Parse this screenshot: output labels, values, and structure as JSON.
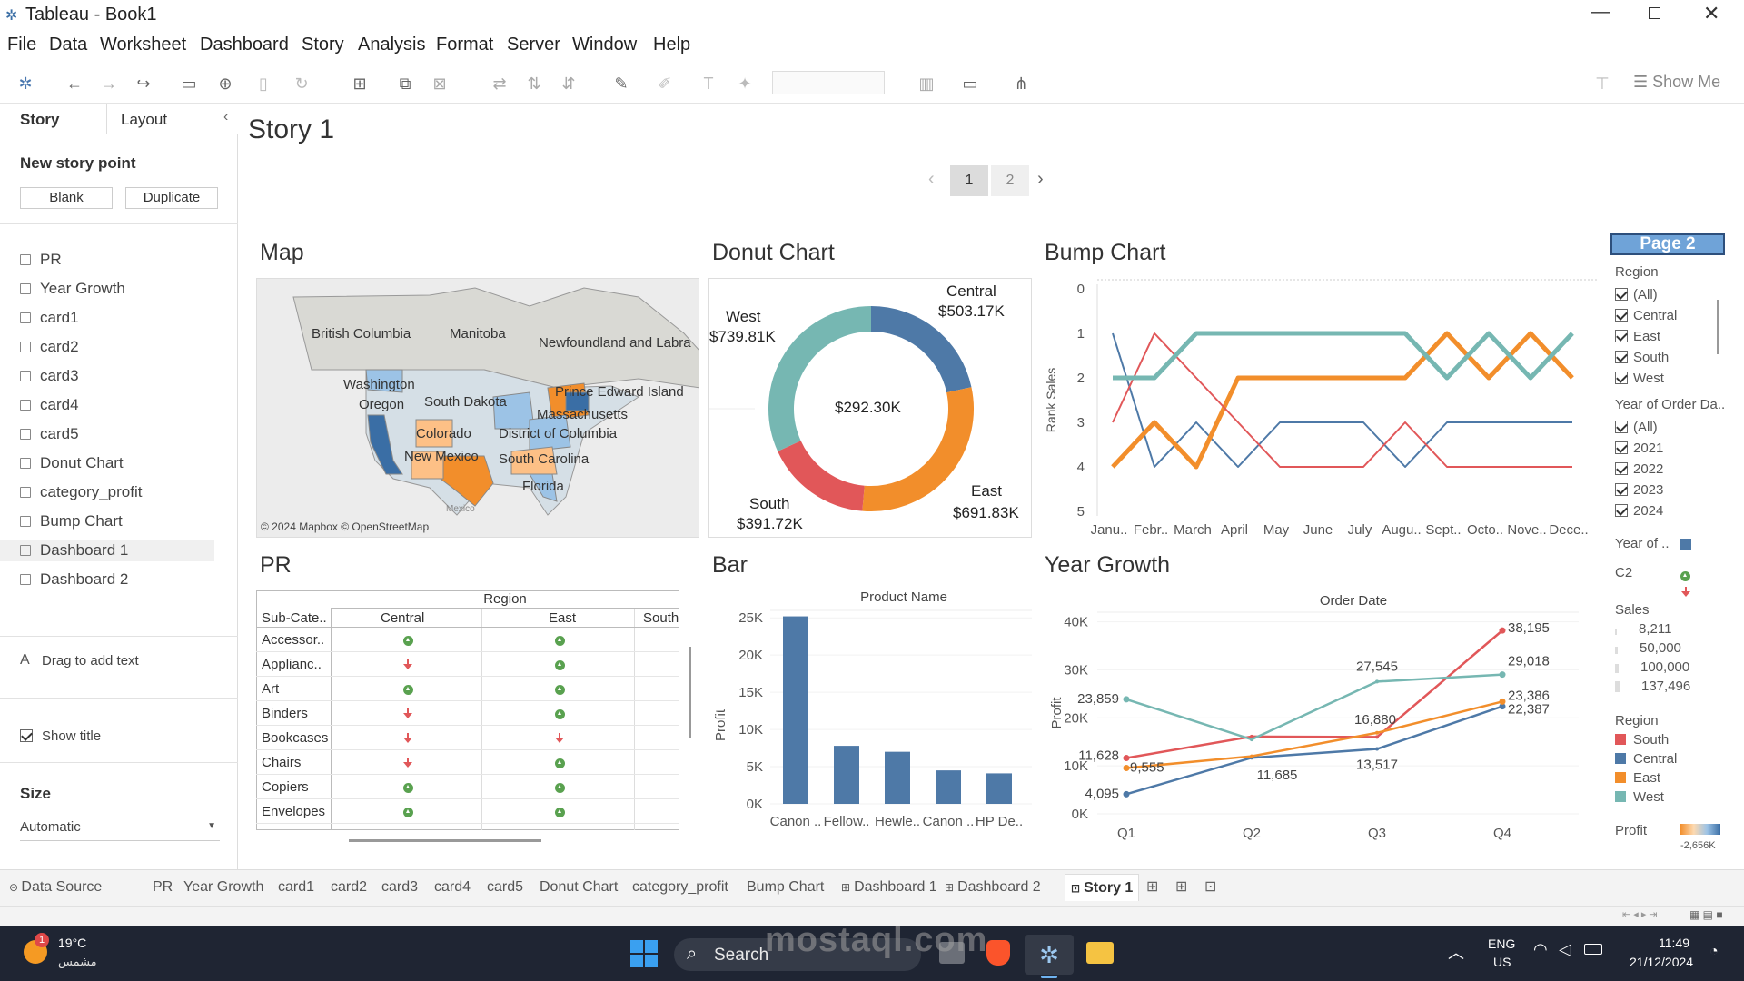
{
  "window": {
    "title": "Tableau - Book1"
  },
  "menu": [
    "File",
    "Data",
    "Worksheet",
    "Dashboard",
    "Story",
    "Analysis",
    "Format",
    "Server",
    "Window",
    "Help"
  ],
  "toolbar": {
    "show_me": "Show Me"
  },
  "side_panel": {
    "tabs": [
      "Story",
      "Layout"
    ],
    "new_story_point": "New story point",
    "blank": "Blank",
    "duplicate": "Duplicate",
    "sheets": [
      "PR",
      "Year Growth",
      "card1",
      "card2",
      "card3",
      "card4",
      "card5",
      "Donut Chart",
      "category_profit",
      "Bump Chart",
      "Dashboard 1",
      "Dashboard 2"
    ],
    "drag_text": "Drag to add text",
    "show_title": "Show title",
    "size_label": "Size",
    "size_value": "Automatic"
  },
  "story": {
    "title": "Story 1",
    "points": [
      "1",
      "2"
    ],
    "page_badge": "Page 2"
  },
  "map": {
    "title": "Map",
    "attribution": "© 2024 Mapbox © OpenStreetMap",
    "labels": [
      "British Columbia",
      "Manitoba",
      "Newfoundland and Labra",
      "Washington",
      "Oregon",
      "South Dakota",
      "Prince Edward Island",
      "Massachusetts",
      "Colorado",
      "District of Columbia",
      "New Mexico",
      "South Carolina",
      "Florida",
      "Mexico"
    ]
  },
  "donut": {
    "title": "Donut Chart",
    "center": "$292.30K",
    "central_name": "Central",
    "central_value": "$503.17K",
    "west_name": "West",
    "west_value": "$739.81K",
    "south_name": "South",
    "south_value": "$391.72K",
    "east_name": "East",
    "east_value": "$691.83K"
  },
  "bump": {
    "title": "Bump Chart",
    "ylabel": "Rank Sales",
    "yticks": [
      "0",
      "1",
      "2",
      "3",
      "4",
      "5"
    ],
    "months": [
      "Janu..",
      "Febr..",
      "March",
      "April",
      "May",
      "June",
      "July",
      "Augu..",
      "Sept..",
      "Octo..",
      "Nove..",
      "Dece.."
    ]
  },
  "pr": {
    "title": "PR",
    "region_header": "Region",
    "subcat_header": "Sub-Cate..",
    "cols": [
      "Central",
      "East",
      "South"
    ],
    "rows": [
      {
        "name": "Accessor..",
        "central": "up",
        "east": "up"
      },
      {
        "name": "Applianc..",
        "central": "down",
        "east": "up"
      },
      {
        "name": "Art",
        "central": "up",
        "east": "up"
      },
      {
        "name": "Binders",
        "central": "down",
        "east": "up"
      },
      {
        "name": "Bookcases",
        "central": "down",
        "east": "down"
      },
      {
        "name": "Chairs",
        "central": "down",
        "east": "up"
      },
      {
        "name": "Copiers",
        "central": "up",
        "east": "up"
      },
      {
        "name": "Envelopes",
        "central": "up",
        "east": "up"
      }
    ]
  },
  "bar": {
    "title": "Bar",
    "header": "Product Name",
    "ylabel": "Profit"
  },
  "year_growth": {
    "title": "Year Growth",
    "header": "Order Date",
    "ylabel": "Profit"
  },
  "chart_data": [
    {
      "type": "pie",
      "title": "Donut Chart",
      "categories": [
        "Central",
        "East",
        "South",
        "West"
      ],
      "values": [
        503.17,
        691.83,
        391.72,
        739.81
      ],
      "unit": "$K",
      "center_label": "$292.30K"
    },
    {
      "type": "line",
      "title": "Bump Chart",
      "ylabel": "Rank Sales",
      "ylim": [
        0,
        5
      ],
      "categories": [
        "Janu..",
        "Febr..",
        "March",
        "April",
        "May",
        "June",
        "July",
        "Augu..",
        "Sept..",
        "Octo..",
        "Nove..",
        "Dece.."
      ],
      "series": [
        {
          "name": "Central",
          "values": [
            1,
            4,
            3,
            4,
            3,
            3,
            3,
            4,
            3,
            3,
            3,
            3
          ]
        },
        {
          "name": "East",
          "values": [
            4,
            3,
            4,
            2,
            2,
            2,
            2,
            2,
            1,
            2,
            1,
            2
          ]
        },
        {
          "name": "South",
          "values": [
            3,
            1,
            2,
            3,
            4,
            4,
            4,
            3,
            4,
            4,
            4,
            4
          ]
        },
        {
          "name": "West",
          "values": [
            2,
            2,
            1,
            1,
            1,
            1,
            1,
            1,
            2,
            1,
            2,
            1
          ]
        }
      ]
    },
    {
      "type": "bar",
      "title": "Bar",
      "xlabel": "Product Name",
      "ylabel": "Profit",
      "categories": [
        "Canon ..",
        "Fellow..",
        "Hewle..",
        "Canon ..",
        "HP De.."
      ],
      "values": [
        25200,
        7800,
        7000,
        4500,
        4100
      ],
      "ylim": [
        0,
        26000
      ],
      "yticks": [
        0,
        5000,
        10000,
        15000,
        20000,
        25000
      ],
      "ytick_labels": [
        "0K",
        "5K",
        "10K",
        "15K",
        "20K",
        "25K"
      ]
    },
    {
      "type": "line",
      "title": "Year Growth",
      "xlabel": "Order Date",
      "ylabel": "Profit",
      "categories": [
        "Q1",
        "Q2",
        "Q3",
        "Q4"
      ],
      "ylim": [
        0,
        42000
      ],
      "yticks": [
        0,
        10000,
        20000,
        30000,
        40000
      ],
      "ytick_labels": [
        "0K",
        "10K",
        "20K",
        "30K",
        "40K"
      ],
      "series": [
        {
          "name": "South",
          "values": [
            11628,
            16100,
            16000,
            38195
          ]
        },
        {
          "name": "Central",
          "values": [
            4095,
            11685,
            13517,
            22387
          ]
        },
        {
          "name": "East",
          "values": [
            9555,
            12000,
            16880,
            23386
          ]
        },
        {
          "name": "West",
          "values": [
            23859,
            15500,
            27545,
            29018
          ]
        }
      ],
      "data_labels": {
        "South": [
          "11,628",
          null,
          null,
          "38,195"
        ],
        "Central": [
          "4,095",
          "11,685",
          "13,517",
          "22,387"
        ],
        "East": [
          "9,555",
          null,
          "16,880",
          "23,386"
        ],
        "West": [
          "23,859",
          null,
          "27,545",
          "29,018"
        ]
      }
    }
  ],
  "filters": {
    "region_title": "Region",
    "regions": [
      "(All)",
      "Central",
      "East",
      "South",
      "West"
    ],
    "year_title": "Year of Order Da..",
    "years": [
      "(All)",
      "2021",
      "2022",
      "2023",
      "2024"
    ],
    "year_of": "Year of ..",
    "c2": "C2",
    "sales_title": "Sales",
    "sales": [
      "8,211",
      "50,000",
      "100,000",
      "137,496"
    ],
    "region_legend_title": "Region",
    "region_legend": [
      "South",
      "Central",
      "East",
      "West"
    ],
    "profit_title": "Profit",
    "profit_min": "-2,656K"
  },
  "colors": {
    "central": "#4e79a7",
    "east": "#f28e2b",
    "south": "#e15759",
    "west": "#76b7b2"
  },
  "tabs": {
    "data_source": "Data Source",
    "sheets": [
      "PR",
      "Year Growth",
      "card1",
      "card2",
      "card3",
      "card4",
      "card5",
      "Donut Chart",
      "category_profit",
      "Bump Chart",
      "Dashboard 1",
      "Dashboard 2",
      "Story 1"
    ]
  },
  "taskbar": {
    "temp": "19°C",
    "weather": "مشمس",
    "badge": "1",
    "search": "Search",
    "lang1": "ENG",
    "lang2": "US",
    "time": "11:49",
    "date": "21/12/2024",
    "watermark": "mostaql.com"
  }
}
